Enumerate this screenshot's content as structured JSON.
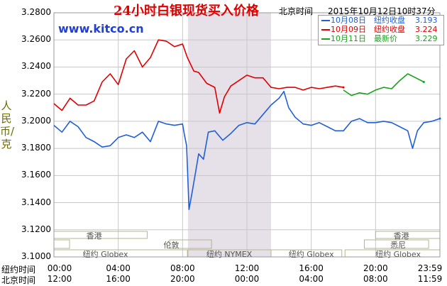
{
  "header": {
    "title": "24小时白银现货买入价格",
    "timezone": "北京时间",
    "datetime": "2015年10月12日10时37分",
    "site": "www.kitco.cn"
  },
  "legend": [
    {
      "date": "10月08日",
      "label": "纽约收盘",
      "value": "3.193",
      "color": "#1f5fd8"
    },
    {
      "date": "10月09日",
      "label": "纽约收盘",
      "value": "3.224",
      "color": "#e00000"
    },
    {
      "date": "10月11日",
      "label": "最新价",
      "value": "3.229",
      "color": "#19a319"
    }
  ],
  "y_axis_label": "人民币/克",
  "row_labels": {
    "ny": "纽约时间",
    "bj": "北京时间"
  },
  "markets": {
    "hk": "香港",
    "ldn": "伦敦",
    "nymex": "纽约 NYMEX",
    "globex": "纽约 Globex",
    "syd": "悉尼"
  },
  "colors": {
    "grid": "#c8c8c8",
    "nymex_band": "#e6e0e9",
    "frame": "#9a9a9a",
    "market_box": "#b5b590"
  },
  "chart_data": {
    "type": "line",
    "title": "24小时白银现货买入价格",
    "ylabel": "人民币/克",
    "xlabel": "",
    "x_unit": "hours (NY time, 0 = 00:00)",
    "xlim": [
      0,
      24
    ],
    "ylim": [
      3.1,
      3.28
    ],
    "y_ticks": [
      "3.1000",
      "3.1200",
      "3.1400",
      "3.1600",
      "3.1800",
      "3.2000",
      "3.2200",
      "3.2400",
      "3.2600",
      "3.2800"
    ],
    "x_ticks_ny": [
      "00:00",
      "04:00",
      "08:00",
      "12:00",
      "16:00",
      "20:00",
      "23:59"
    ],
    "x_ticks_bj": [
      "12:00",
      "16:00",
      "20:00",
      "00:00",
      "04:00",
      "08:00",
      "11:59"
    ],
    "grid": true,
    "shaded_session": {
      "name": "纽约 NYMEX",
      "from": 8.33,
      "to": 13.5
    },
    "series": [
      {
        "name": "10月08日",
        "color": "#1f5fd8",
        "x": [
          0,
          0.5,
          1,
          1.5,
          2,
          2.5,
          3,
          3.5,
          4,
          4.5,
          5,
          5.5,
          6,
          6.5,
          7,
          7.5,
          8,
          8.1,
          8.25,
          8.4,
          8.6,
          8.8,
          9,
          9.3,
          9.6,
          10,
          10.5,
          11,
          11.5,
          12,
          12.5,
          13,
          13.5,
          14,
          14.3,
          14.6,
          15,
          15.5,
          16,
          16.5,
          17,
          17.5,
          18,
          18.5,
          19,
          19.5,
          20,
          20.5,
          21,
          21.5,
          22,
          22.3,
          22.6,
          23,
          23.5,
          24
        ],
        "values": [
          3.197,
          3.192,
          3.2,
          3.196,
          3.188,
          3.185,
          3.181,
          3.182,
          3.188,
          3.19,
          3.188,
          3.192,
          3.185,
          3.2,
          3.198,
          3.197,
          3.198,
          3.191,
          3.182,
          3.135,
          3.148,
          3.162,
          3.176,
          3.172,
          3.192,
          3.193,
          3.186,
          3.191,
          3.197,
          3.199,
          3.198,
          3.205,
          3.212,
          3.217,
          3.222,
          3.21,
          3.203,
          3.198,
          3.197,
          3.199,
          3.196,
          3.193,
          3.193,
          3.2,
          3.202,
          3.199,
          3.199,
          3.2,
          3.199,
          3.196,
          3.193,
          3.18,
          3.193,
          3.199,
          3.2,
          3.202
        ]
      },
      {
        "name": "10月09日",
        "color": "#e00000",
        "x": [
          0,
          0.5,
          1,
          1.5,
          2,
          2.5,
          3,
          3.5,
          4,
          4.5,
          5,
          5.5,
          6,
          6.5,
          7,
          7.5,
          8,
          8.3,
          8.7,
          9,
          9.5,
          10,
          10.3,
          10.6,
          11,
          11.5,
          12,
          12.5,
          13,
          13.5,
          14,
          14.5,
          15,
          15.5,
          16,
          16.5,
          17,
          17.5,
          18
        ],
        "values": [
          3.213,
          3.208,
          3.217,
          3.212,
          3.212,
          3.215,
          3.229,
          3.235,
          3.227,
          3.246,
          3.252,
          3.24,
          3.247,
          3.26,
          3.259,
          3.255,
          3.257,
          3.247,
          3.237,
          3.236,
          3.228,
          3.225,
          3.206,
          3.218,
          3.226,
          3.23,
          3.234,
          3.232,
          3.232,
          3.225,
          3.224,
          3.225,
          3.225,
          3.223,
          3.225,
          3.224,
          3.225,
          3.226,
          3.225
        ]
      },
      {
        "name": "10月11日",
        "color": "#19a319",
        "x": [
          18,
          18.5,
          19,
          19.5,
          20,
          20.5,
          21,
          21.5,
          22,
          22.5,
          23
        ],
        "values": [
          3.223,
          3.219,
          3.221,
          3.22,
          3.223,
          3.225,
          3.224,
          3.23,
          3.235,
          3.232,
          3.229
        ]
      }
    ]
  }
}
